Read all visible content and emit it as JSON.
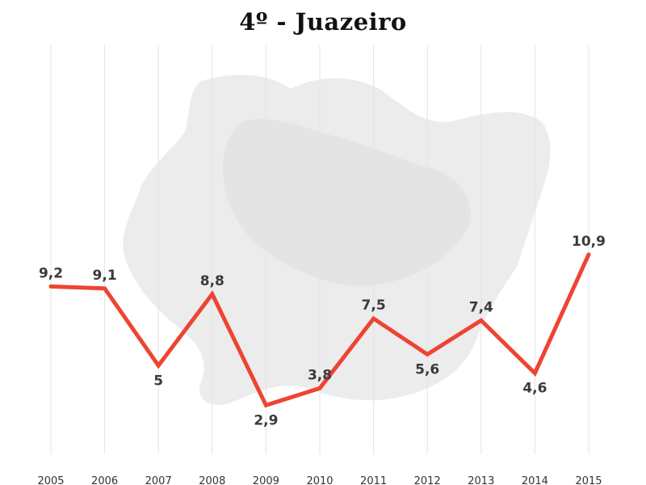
{
  "chart_data": {
    "type": "line",
    "title": "4º - Juazeiro",
    "xlabel": "",
    "ylabel": "",
    "categories": [
      "2005",
      "2006",
      "2007",
      "2008",
      "2009",
      "2010",
      "2011",
      "2012",
      "2013",
      "2014",
      "2015"
    ],
    "series": [
      {
        "values": [
          9.2,
          9.1,
          5,
          8.8,
          2.9,
          3.8,
          7.5,
          5.6,
          7.4,
          4.6,
          10.9
        ],
        "labels": [
          "9,2",
          "9,1",
          "5",
          "8,8",
          "2,9",
          "3,8",
          "7,5",
          "5,6",
          "7,4",
          "4,6",
          "10,9"
        ]
      }
    ],
    "colors": {
      "line": "#ee4433",
      "grid": "#e3e3e3",
      "text": "#3a3a3a"
    },
    "grid": "vertical",
    "background_icon": "map-silhouette"
  }
}
